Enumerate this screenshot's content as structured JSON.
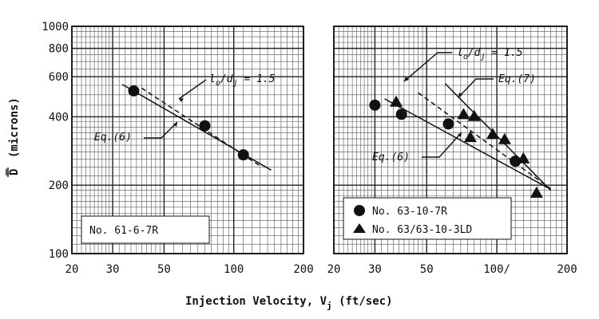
{
  "chart_data": [
    {
      "type": "scatter",
      "scale": "log-log",
      "xlim": [
        20,
        200
      ],
      "ylim": [
        100,
        1000
      ],
      "x_ticks": [
        20,
        30,
        50,
        100,
        200
      ],
      "x_tick_labels": [
        "20",
        "30",
        "50",
        "100",
        "200"
      ],
      "y_ticks": [
        100,
        200,
        400,
        600,
        800,
        1000
      ],
      "y_tick_labels": [
        "100",
        "200",
        "400",
        "600",
        "800",
        "1000"
      ],
      "series": [
        {
          "name": "No. 61-6-7R",
          "marker": "circle",
          "points": [
            {
              "x": 37,
              "y": 520
            },
            {
              "x": 75,
              "y": 365
            },
            {
              "x": 110,
              "y": 272
            }
          ]
        }
      ],
      "lines": [
        {
          "name": "Eq.(6)",
          "style": "solid",
          "points": [
            {
              "x": 33,
              "y": 555
            },
            {
              "x": 145,
              "y": 233
            }
          ]
        },
        {
          "name": "l_o/d_j = 1.5",
          "style": "dashed",
          "points": [
            {
              "x": 40,
              "y": 535
            },
            {
              "x": 130,
              "y": 243
            }
          ]
        }
      ],
      "annotations": [
        {
          "text": "l_o/d_j = 1.5",
          "target": "dashed-line"
        },
        {
          "text": "Eq.(6)",
          "target": "solid-line"
        }
      ],
      "legend": "No. 61-6-7R"
    },
    {
      "type": "scatter",
      "scale": "log-log",
      "xlim": [
        20,
        200
      ],
      "ylim": [
        100,
        1000
      ],
      "x_ticks": [
        20,
        30,
        50,
        100,
        200
      ],
      "x_tick_labels": [
        "20",
        "30",
        "50",
        "100/",
        "200"
      ],
      "y_ticks": [
        100,
        200,
        400,
        600,
        800,
        1000
      ],
      "series": [
        {
          "name": "No. 63-10-7R",
          "marker": "circle",
          "points": [
            {
              "x": 30,
              "y": 450
            },
            {
              "x": 39,
              "y": 410
            },
            {
              "x": 62,
              "y": 372
            },
            {
              "x": 120,
              "y": 255
            }
          ]
        },
        {
          "name": "No. 63/63-10-3LD",
          "marker": "triangle",
          "points": [
            {
              "x": 37,
              "y": 465
            },
            {
              "x": 72,
              "y": 410
            },
            {
              "x": 80,
              "y": 402
            },
            {
              "x": 77,
              "y": 325
            },
            {
              "x": 96,
              "y": 335
            },
            {
              "x": 108,
              "y": 318
            },
            {
              "x": 130,
              "y": 262
            },
            {
              "x": 148,
              "y": 185
            }
          ]
        }
      ],
      "lines": [
        {
          "name": "Eq.(6)",
          "style": "solid",
          "points": [
            {
              "x": 33,
              "y": 480
            },
            {
              "x": 165,
              "y": 195
            }
          ]
        },
        {
          "name": "Eq.(7)",
          "style": "solid",
          "points": [
            {
              "x": 60,
              "y": 560
            },
            {
              "x": 170,
              "y": 190
            }
          ]
        },
        {
          "name": "l_o/d_j = 1.5",
          "style": "dashed",
          "points": [
            {
              "x": 46,
              "y": 510
            },
            {
              "x": 170,
              "y": 193
            }
          ]
        }
      ],
      "annotations": [
        {
          "text": "l_o/d_j = 1.5",
          "target": "dashed-line"
        },
        {
          "text": "Eq.(7)",
          "target": "solid-line"
        },
        {
          "text": "Eq.(6)",
          "target": "solid-line"
        }
      ],
      "legend": [
        "No. 63-10-7R",
        "No. 63/63-10-3LD"
      ]
    }
  ],
  "axes": {
    "xlabel_main": "Injection Velocity, V",
    "xlabel_sub": "j",
    "xlabel_units": " (ft/sec)",
    "ylabel_symbol": "D",
    "ylabel_units": "(microns)"
  },
  "annotation_text": {
    "ratio_main": "l",
    "ratio_sub_o": "o",
    "ratio_slash": "/d",
    "ratio_sub_j": "j",
    "ratio_value": " = 1.5",
    "eq6": "Eq.(6)",
    "eq7": "Eq.(7)"
  }
}
